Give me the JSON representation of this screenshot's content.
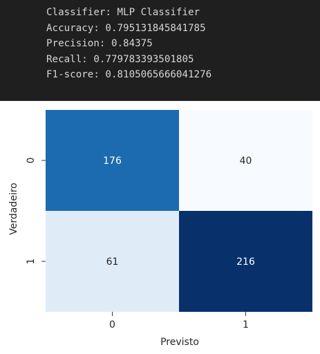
{
  "output": {
    "lines": [
      "Classifier: MLP Classifier",
      "Accuracy: 0.795131845841785",
      "Precision: 0.84375",
      "Recall: 0.779783393501805",
      "F1-score: 0.8105065666041276"
    ]
  },
  "chart_data": {
    "type": "heatmap",
    "title": "",
    "xlabel": "Previsto",
    "ylabel": "Verdadeiro",
    "x_categories": [
      "0",
      "1"
    ],
    "y_categories": [
      "0",
      "1"
    ],
    "values": [
      [
        176,
        40
      ],
      [
        61,
        216
      ]
    ],
    "colormap": "Blues",
    "colorbar": false,
    "annotate": true
  },
  "colors": {
    "console_bg": "#1f1f1f",
    "console_text": "#d6d6d6",
    "low": "#f7fbff",
    "high": "#08306b"
  }
}
